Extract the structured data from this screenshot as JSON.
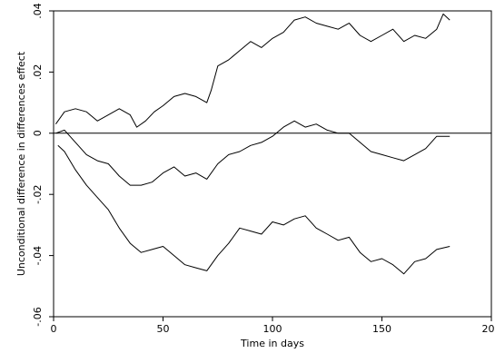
{
  "chart_data": {
    "type": "line",
    "xlabel": "Time in days",
    "ylabel": "Unconditional difference in differences effect",
    "xlim": [
      0,
      200
    ],
    "ylim": [
      -0.06,
      0.04
    ],
    "x_ticks": [
      0,
      50,
      100,
      150,
      200
    ],
    "y_ticks": [
      -0.06,
      -0.04,
      -0.02,
      0,
      0.02,
      0.04
    ],
    "x_tick_labels": [
      "0",
      "50",
      "100",
      "150",
      "200"
    ],
    "y_tick_labels": [
      "-.06",
      "-.04",
      "-.02",
      "0",
      ".02",
      ".04"
    ],
    "reference_line_y": 0,
    "grid": false,
    "series": [
      {
        "x": [
          1,
          5,
          10,
          15,
          20,
          25,
          30,
          35,
          38,
          42,
          46,
          50,
          55,
          60,
          65,
          70,
          72,
          75,
          80,
          85,
          90,
          95,
          100,
          105,
          110,
          115,
          120,
          125,
          130,
          135,
          140,
          145,
          150,
          155,
          160,
          165,
          170,
          175,
          178,
          181
        ],
        "y": [
          0.003,
          0.007,
          0.008,
          0.007,
          0.004,
          0.006,
          0.008,
          0.006,
          0.002,
          0.004,
          0.007,
          0.009,
          0.012,
          0.013,
          0.012,
          0.01,
          0.014,
          0.022,
          0.024,
          0.027,
          0.03,
          0.028,
          0.031,
          0.033,
          0.037,
          0.038,
          0.036,
          0.035,
          0.034,
          0.036,
          0.032,
          0.03,
          0.032,
          0.034,
          0.03,
          0.032,
          0.031,
          0.034,
          0.039,
          0.037
        ]
      },
      {
        "x": [
          1,
          5,
          10,
          15,
          20,
          25,
          30,
          35,
          40,
          45,
          50,
          55,
          60,
          65,
          70,
          75,
          80,
          85,
          90,
          95,
          100,
          105,
          110,
          115,
          120,
          125,
          130,
          135,
          140,
          145,
          150,
          155,
          160,
          165,
          170,
          175,
          181
        ],
        "y": [
          0.0,
          0.001,
          -0.003,
          -0.007,
          -0.009,
          -0.01,
          -0.014,
          -0.017,
          -0.017,
          -0.016,
          -0.013,
          -0.011,
          -0.014,
          -0.013,
          -0.015,
          -0.01,
          -0.007,
          -0.006,
          -0.004,
          -0.003,
          -0.001,
          0.002,
          0.004,
          0.002,
          0.003,
          0.001,
          0.0,
          0.0,
          -0.003,
          -0.006,
          -0.007,
          -0.008,
          -0.009,
          -0.007,
          -0.005,
          -0.001,
          -0.001
        ]
      },
      {
        "x": [
          2,
          5,
          10,
          15,
          20,
          25,
          30,
          35,
          40,
          45,
          50,
          55,
          60,
          65,
          70,
          75,
          80,
          85,
          90,
          95,
          100,
          105,
          110,
          115,
          120,
          125,
          130,
          135,
          140,
          145,
          150,
          155,
          160,
          165,
          170,
          175,
          181
        ],
        "y": [
          -0.004,
          -0.006,
          -0.012,
          -0.017,
          -0.021,
          -0.025,
          -0.031,
          -0.036,
          -0.039,
          -0.038,
          -0.037,
          -0.04,
          -0.043,
          -0.044,
          -0.045,
          -0.04,
          -0.036,
          -0.031,
          -0.032,
          -0.033,
          -0.029,
          -0.03,
          -0.028,
          -0.027,
          -0.031,
          -0.033,
          -0.035,
          -0.034,
          -0.039,
          -0.042,
          -0.041,
          -0.043,
          -0.046,
          -0.042,
          -0.041,
          -0.038,
          -0.037
        ]
      }
    ]
  }
}
